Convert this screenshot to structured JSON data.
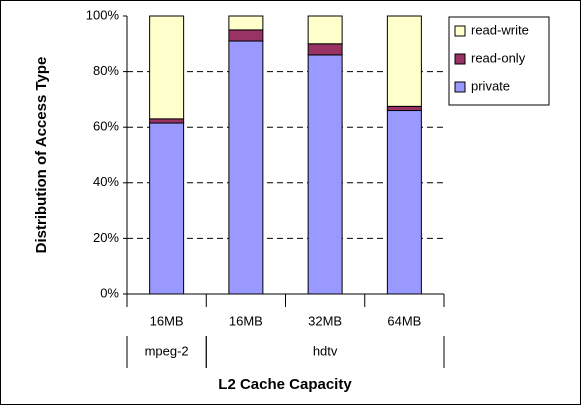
{
  "chart_data": {
    "type": "stacked_bar",
    "ylabel": "Distribution of Access Type",
    "xlabel": "L2 Cache Capacity",
    "categories": [
      "16MB",
      "16MB",
      "32MB",
      "64MB"
    ],
    "groups": [
      {
        "name": "mpeg-2",
        "count": 1
      },
      {
        "name": "hdtv",
        "count": 3
      }
    ],
    "series": [
      {
        "name": "private",
        "color": "#9999ff",
        "values": [
          61.5,
          91,
          86,
          66
        ]
      },
      {
        "name": "read-only",
        "color": "#993366",
        "values": [
          1.5,
          4,
          4,
          1.5
        ]
      },
      {
        "name": "read-write",
        "color": "#ffffcc",
        "values": [
          37,
          5,
          10,
          32.5
        ]
      }
    ],
    "ylim": [
      0,
      100
    ],
    "yticks": [
      {
        "value": 0,
        "label": "0%"
      },
      {
        "value": 20,
        "label": "20%"
      },
      {
        "value": 40,
        "label": "40%"
      },
      {
        "value": 60,
        "label": "60%"
      },
      {
        "value": 80,
        "label": "80%"
      },
      {
        "value": 100,
        "label": "100%"
      }
    ],
    "grid": true,
    "legend": "upper right"
  }
}
